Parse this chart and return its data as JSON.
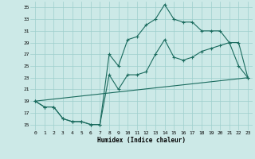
{
  "xlabel": "Humidex (Indice chaleur)",
  "bg_color": "#cce9e7",
  "grid_color": "#9dcfcc",
  "line_color": "#1a6b5e",
  "xlim": [
    -0.5,
    23.5
  ],
  "ylim": [
    14,
    36
  ],
  "yticks": [
    15,
    17,
    19,
    21,
    23,
    25,
    27,
    29,
    31,
    33,
    35
  ],
  "xticks": [
    0,
    1,
    2,
    3,
    4,
    5,
    6,
    7,
    8,
    9,
    10,
    11,
    12,
    13,
    14,
    15,
    16,
    17,
    18,
    19,
    20,
    21,
    22,
    23
  ],
  "line1_x": [
    0,
    1,
    2,
    3,
    4,
    5,
    6,
    7,
    8,
    9,
    10,
    11,
    12,
    13,
    14,
    15,
    16,
    17,
    18,
    19,
    20,
    21,
    22,
    23
  ],
  "line1_y": [
    19,
    18,
    18,
    16,
    15.5,
    15.5,
    15,
    15,
    27,
    25,
    29.5,
    30,
    32,
    33,
    35.5,
    33,
    32.5,
    32.5,
    31,
    31,
    31,
    29,
    25,
    23
  ],
  "line2_x": [
    0,
    1,
    2,
    3,
    4,
    5,
    6,
    7,
    8,
    9,
    10,
    11,
    12,
    13,
    14,
    15,
    16,
    17,
    18,
    19,
    20,
    21,
    22,
    23
  ],
  "line2_y": [
    19,
    18,
    18,
    16,
    15.5,
    15.5,
    15,
    15,
    23.5,
    21,
    23.5,
    23.5,
    24,
    27,
    29.5,
    26.5,
    26,
    26.5,
    27.5,
    28,
    28.5,
    29,
    29,
    23
  ],
  "line3_x": [
    0,
    23
  ],
  "line3_y": [
    19,
    23
  ]
}
